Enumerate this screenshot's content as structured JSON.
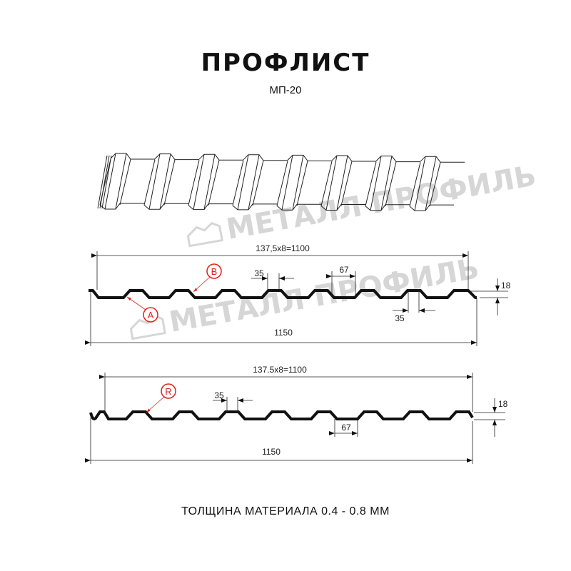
{
  "title": "ПРОФЛИСТ",
  "subtitle": "МП-20",
  "footer": "ТОЛЩИНА МАТЕРИАЛА 0.4 - 0.8 ММ",
  "watermark": "МЕТАЛЛ ПРОФИЛЬ",
  "profile_top": {
    "pitch_label": "137,5x8=1100",
    "width_label": "1150",
    "crest_label": "35",
    "valley_label": "67",
    "bottom_crest_label": "35",
    "height_label": "18",
    "marker_a": "A",
    "marker_b": "B"
  },
  "profile_bottom": {
    "pitch_label": "137.5x8=1100",
    "width_label": "1150",
    "crest_label": "35",
    "valley_label": "67",
    "height_label": "18",
    "marker_r": "R"
  },
  "colors": {
    "line": "#111111",
    "marker": "#e3201b",
    "watermark": "#d6d6d6"
  }
}
